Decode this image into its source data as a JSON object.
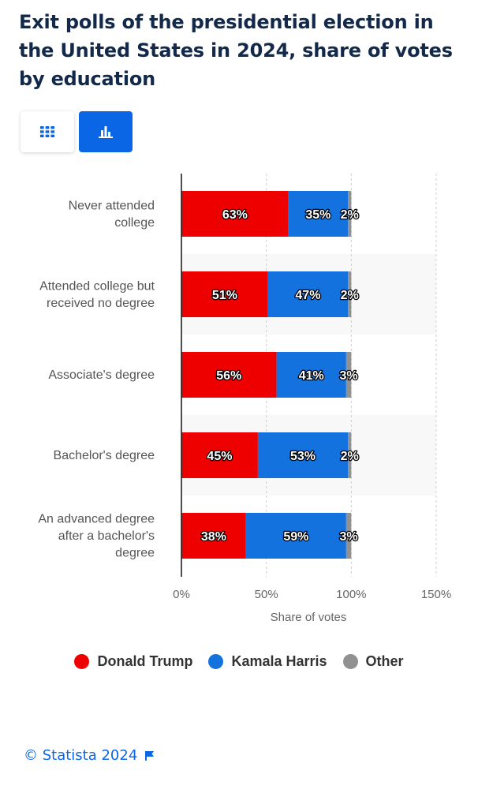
{
  "title": "Exit polls of the presidential election in the United States in 2024, share of votes by education",
  "view_toggle": {
    "table_icon": "grid-icon",
    "chart_icon": "bar-chart-icon",
    "active": "chart"
  },
  "colors": {
    "trump": "#ee0000",
    "harris": "#1372dd",
    "other": "#919191",
    "accent": "#0a66e4",
    "title": "#13294b"
  },
  "chart_data": {
    "type": "bar",
    "orientation": "horizontal",
    "stacked": true,
    "categories": [
      [
        "Never attended",
        "college"
      ],
      [
        "Attended college but",
        "received no degree"
      ],
      [
        "Associate's degree"
      ],
      [
        "Bachelor's degree"
      ],
      [
        "An advanced degree",
        "after a bachelor's",
        "degree"
      ]
    ],
    "series": [
      {
        "name": "Donald Trump",
        "color": "#ee0000",
        "values": [
          63,
          51,
          56,
          45,
          38
        ],
        "labels": [
          "63%",
          "51%",
          "56%",
          "45%",
          "38%"
        ]
      },
      {
        "name": "Kamala Harris",
        "color": "#1372dd",
        "values": [
          35,
          47,
          41,
          53,
          59
        ],
        "labels": [
          "35%",
          "47%",
          "41%",
          "53%",
          "59%"
        ]
      },
      {
        "name": "Other",
        "color": "#919191",
        "values": [
          2,
          2,
          3,
          2,
          3
        ],
        "labels": [
          "2%",
          "2%",
          "3%",
          "2%",
          "3%"
        ]
      }
    ],
    "xlabel": "Share of votes",
    "xlim": [
      0,
      150
    ],
    "xticks": [
      0,
      50,
      100,
      150
    ],
    "xtick_labels": [
      "0%",
      "50%",
      "100%",
      "150%"
    ],
    "grid": true,
    "legend_position": "bottom"
  },
  "legend": [
    {
      "label": "Donald Trump",
      "color": "#ee0000"
    },
    {
      "label": "Kamala Harris",
      "color": "#1372dd"
    },
    {
      "label": "Other",
      "color": "#919191"
    }
  ],
  "credit": {
    "text": "© Statista 2024",
    "icon": "flag-icon"
  }
}
